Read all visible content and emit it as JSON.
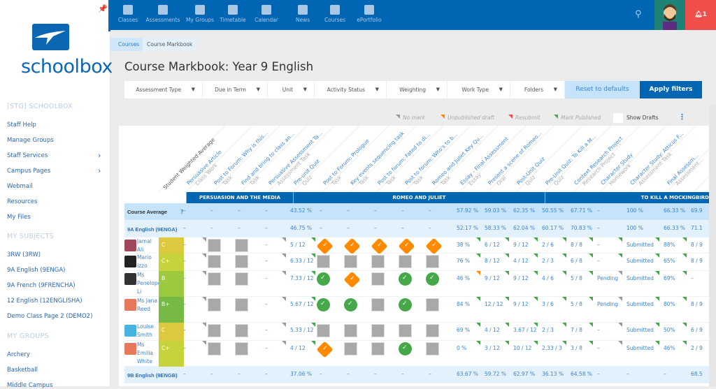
{
  "sidebar": {
    "logo_text": "schoolbox",
    "site_heading": "[STG] SCHOOLBOX",
    "links": [
      {
        "label": "Staff Help"
      },
      {
        "label": "Manage Groups"
      },
      {
        "label": "Staff Services",
        "chevron": true
      },
      {
        "label": "Campus Pages",
        "chevron": true
      },
      {
        "label": "Webmail"
      },
      {
        "label": "Resources"
      },
      {
        "label": "My Files"
      }
    ],
    "subjects_heading": "MY SUBJECTS",
    "subjects": [
      "3RW (3RW)",
      "9A English (9ENGA)",
      "9A French (9FRENCHA)",
      "12 English (12ENGLISHA)",
      "Demo Class Page 2 (DEMO2)"
    ],
    "groups_heading": "MY GROUPS",
    "groups": [
      "Archery",
      "Basketball",
      "Middle Campus"
    ]
  },
  "topnav": {
    "items": [
      "Classes",
      "Assessments",
      "My Groups",
      "Timetable",
      "Calendar",
      "News",
      "Courses",
      "ePortfolio"
    ],
    "notification_count": "1"
  },
  "breadcrumb": [
    "Courses",
    "Course Markbook"
  ],
  "page_title": "Course Markbook: Year 9 English",
  "filters": [
    "Assessment Type",
    "Due in Term",
    "Unit",
    "Activity Status",
    "Weighting",
    "Work Type",
    "Folders"
  ],
  "reset_label": "Reset to defaults",
  "apply_label": "Apply filters",
  "legend": [
    {
      "label": "No mark",
      "color": "#999999"
    },
    {
      "label": "Unpublished draft",
      "color": "#ff8a00"
    },
    {
      "label": "Resubmit",
      "color": "#f04e4b"
    },
    {
      "label": "Mark Published",
      "color": "#46a84a"
    }
  ],
  "show_drafts_label": "Show Drafts",
  "weighted_avg_header": "Student Weighted Average",
  "columns": [
    {
      "title": "Persuasive Article",
      "type": "Class Work"
    },
    {
      "title": "Post to Forum: Why is this...",
      "type": "Task"
    },
    {
      "title": "Find and bring to class an...",
      "type": "Task"
    },
    {
      "title": "Persuasive Assessment Ta...",
      "type": "Assessment Task"
    },
    {
      "title": "Pre-unit Quiz",
      "type": "Quiz"
    },
    {
      "title": "Post to Forum: Prologue",
      "type": "Task"
    },
    {
      "title": "Key events sequencing task",
      "type": "Task"
    },
    {
      "title": "Post to forum: Fated to di...",
      "type": "Task"
    },
    {
      "title": "Post to forum: Who's to b...",
      "type": "Task"
    },
    {
      "title": "Romeo and Juliet Key Qu...",
      "type": "Task"
    },
    {
      "title": "Essay - Final Assessment",
      "type": "Essay"
    },
    {
      "title": "Present a scene of Romeo...",
      "type": "Oral"
    },
    {
      "title": "Post-Unit Quiz",
      "type": "Quiz"
    },
    {
      "title": "Pre-Unit Quiz: To Kill a M...",
      "type": "Quiz"
    },
    {
      "title": "Context Research Project",
      "type": "Research Project"
    },
    {
      "title": "Character Study",
      "type": "Homework"
    },
    {
      "title": "Character Study: Atticus F...",
      "type": "Assessment Task"
    },
    {
      "title": "Final Assessm...",
      "type": "Assessment..."
    }
  ],
  "units": [
    {
      "label": "PERSUASION AND THE MEDIA"
    },
    {
      "label": "ROMEO AND JULIET"
    },
    {
      "label": "TO KILL A MOCKINGBIRD"
    }
  ],
  "course_average": {
    "label": "Course Average",
    "help": "?",
    "values": [
      "–",
      "–",
      "–",
      "–",
      "43.52 %",
      "–",
      "–",
      "–",
      "–",
      "–",
      "57.92 %",
      "59.03 %",
      "62.35 %",
      "50.55 %",
      "67.71 %",
      "–",
      "100 %",
      "66.33 %",
      "69.9"
    ]
  },
  "groups": [
    {
      "label": "9A English (9ENGA)",
      "values": [
        "–",
        "–",
        "–",
        "–",
        "46.75 %",
        "–",
        "–",
        "–",
        "–",
        "–",
        "52.17 %",
        "58.33 %",
        "62.04 %",
        "60.17 %",
        "70.83 %",
        "–",
        "100 %",
        "66.33 %",
        "71.1"
      ],
      "students": [
        {
          "name": "Jamal Ali",
          "grade": "C",
          "grade_color": "#dcc93e",
          "avatar_color": "#a0495a",
          "values": [
            "–",
            "#sq",
            "#sq",
            "–",
            "5 / 12",
            "#od",
            "#od",
            "#od",
            "#od",
            "#od",
            "38 %",
            "6 / 12",
            "9 / 12",
            "2 / 6",
            "8 / 8",
            "–",
            "Submitted",
            "88%",
            "8 / 9"
          ],
          "markers": "n..ng.....gggggggg"
        },
        {
          "name": "Mario Izzo",
          "grade": "C+",
          "grade_color": "#c6d33a",
          "avatar_color": "#222222",
          "values": [
            "–",
            "#sq",
            "#sq",
            "–",
            "6.33 / 12",
            "#sq",
            "#sq",
            "#sq",
            "#sq",
            "#sq",
            "76 %",
            "8 / 12",
            "4 / 12",
            "2 / 3",
            "6 / 8",
            "–",
            "Submitted",
            "65%",
            "8 / 9"
          ],
          "markers": "n..ng.....gggggggg"
        },
        {
          "name": "Ms Penelope Li",
          "grade": "B",
          "grade_color": "#9dc93e",
          "avatar_color": "#333333",
          "values": [
            "–",
            "#sq",
            "#sq",
            "–",
            "7.33 / 12",
            "#gc",
            "#od",
            "#sq",
            "#gc",
            "#gc",
            "46 %",
            "9 / 12",
            "9 / 12",
            "4 / 6",
            "5 / 8",
            "Pending",
            "Submitted",
            "69%",
            "–"
          ],
          "markers": "n..ng.....oggggngg"
        },
        {
          "name": "Ms Jana Reed",
          "grade": "B+",
          "grade_color": "#76b944",
          "avatar_color": "#e8785a",
          "values": [
            "–",
            "#sq",
            "#sq",
            "–",
            "5.67 / 12",
            "#gc",
            "#gc",
            "#sq",
            "#gc",
            "#sq",
            "84 %",
            "12 / 12",
            "9 / 12",
            "3 / 6",
            "5 / 8",
            "Pending",
            "Submitted",
            "80%",
            "8 / 9"
          ],
          "markers": "n..ng.....gggggngg"
        },
        {
          "name": "Louise Smith",
          "grade": "C",
          "grade_color": "#dcc93e",
          "avatar_color": "#45b4e0",
          "values": [
            "–",
            "#sq",
            "#sq",
            "–",
            "5.33 / 12",
            "#sq",
            "#sq",
            "#sq",
            "#sq",
            "#sq",
            "69 %",
            "4 / 12",
            "3.67 / 12",
            "2 / 3",
            "7 / 8",
            "–",
            "Submitted",
            "50%",
            "6 / 9"
          ],
          "markers": "n..ng.....gggggngg"
        },
        {
          "name": "Ms Emilia White",
          "grade": "C+",
          "grade_color": "#c6d33a",
          "avatar_color": "#e8785a",
          "values": [
            "–",
            "#sq",
            "#sq",
            "–",
            "4 / 12",
            "#od",
            "#sq",
            "#sq",
            "#gc",
            "#sq",
            "0 %",
            "3 / 12",
            "10 / 12",
            "2.33 / 3",
            "3 / 8",
            "–",
            "Submitted",
            "46%",
            "2 / 9"
          ],
          "markers": "n..ng.....gggggngg"
        }
      ]
    },
    {
      "label": "9B English (9ENGB)",
      "values": [
        "–",
        "–",
        "–",
        "–",
        "37.06 %",
        "–",
        "–",
        "–",
        "–",
        "–",
        "63.67 %",
        "59.72 %",
        "62.97 %",
        "36.13 %",
        "64.58 %",
        "–",
        "–",
        "–",
        "68.5"
      ],
      "students": []
    }
  ]
}
